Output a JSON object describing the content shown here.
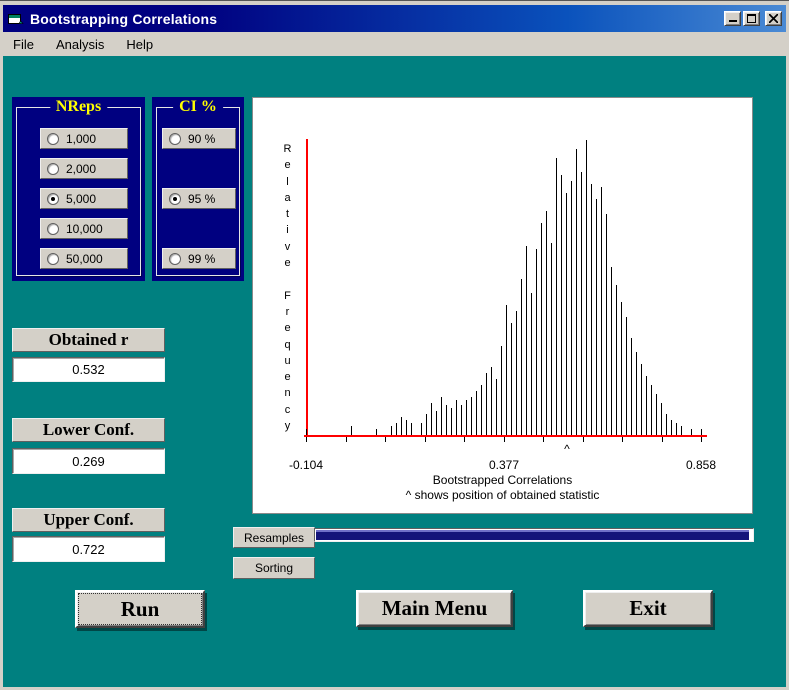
{
  "window": {
    "title": "Bootstrapping Correlations",
    "controls": {
      "minimize": "minimize",
      "maximize": "maximize",
      "close": "close"
    }
  },
  "menu": {
    "items": [
      "File",
      "Analysis",
      "Help"
    ]
  },
  "nreps": {
    "title": "NReps",
    "options": [
      {
        "label": "1,000",
        "selected": false
      },
      {
        "label": "2,000",
        "selected": false
      },
      {
        "label": "5,000",
        "selected": true
      },
      {
        "label": "10,000",
        "selected": false
      },
      {
        "label": "50,000",
        "selected": false
      }
    ]
  },
  "ci": {
    "title": "CI %",
    "options": [
      {
        "label": "90 %",
        "selected": false
      },
      {
        "label": "95 %",
        "selected": true
      },
      {
        "label": "99 %",
        "selected": false
      }
    ]
  },
  "results": [
    {
      "label": "Obtained r",
      "value": "0.532"
    },
    {
      "label": "Lower Conf.",
      "value": "0.269"
    },
    {
      "label": "Upper Conf.",
      "value": "0.722"
    }
  ],
  "progress": {
    "resamples_label": "Resamples",
    "sorting_label": "Sorting",
    "fill_pct": 99.3
  },
  "buttons": [
    {
      "label": "Run",
      "focused": true
    },
    {
      "label": "Main Menu",
      "focused": false
    },
    {
      "label": "Exit",
      "focused": false
    }
  ],
  "chart_data": {
    "type": "bar",
    "subtype": "histogram-spike-plot",
    "title": "",
    "xlabel": "Bootstrapped Correlations",
    "xlabel2": "^ shows position of obtained statistic",
    "ylabel": "Relative Frequency",
    "xlim": [
      -0.104,
      0.858
    ],
    "x_tick_labels": [
      "-0.104",
      "0.377",
      "0.858"
    ],
    "x_ticks": [
      -0.104,
      0.377,
      0.858
    ],
    "n_minor_ticks": 11,
    "grid": false,
    "axis_color": "#ff0000",
    "spike_color": "#000000",
    "marker": {
      "symbol": "^",
      "x": 0.532,
      "meaning": "position of obtained statistic"
    },
    "spikes_relative_heights": [
      0.02,
      0,
      0,
      0,
      0,
      0,
      0,
      0,
      0,
      0.03,
      0,
      0,
      0,
      0,
      0.02,
      0,
      0,
      0.03,
      0.04,
      0.06,
      0.05,
      0.04,
      0,
      0.04,
      0.07,
      0.11,
      0.08,
      0.13,
      0.1,
      0.09,
      0.12,
      0.1,
      0.12,
      0.13,
      0.15,
      0.17,
      0.21,
      0.23,
      0.19,
      0.3,
      0.44,
      0.38,
      0.42,
      0.53,
      0.64,
      0.48,
      0.63,
      0.72,
      0.76,
      0.65,
      0.94,
      0.88,
      0.82,
      0.86,
      0.97,
      0.89,
      1.0,
      0.85,
      0.8,
      0.84,
      0.75,
      0.57,
      0.51,
      0.45,
      0.4,
      0.33,
      0.28,
      0.24,
      0.2,
      0.17,
      0.14,
      0.11,
      0.07,
      0.05,
      0.04,
      0.03,
      0,
      0.02,
      0,
      0.02
    ]
  },
  "colors": {
    "client_teal": "#008080",
    "panel_navy": "#000080",
    "group_title_yellow": "#ffff00",
    "axis_red": "#ff0000",
    "control_gray": "#d4d0c8",
    "titlebar_gradient_start": "#000080",
    "titlebar_gradient_end": "#4a8ad4"
  }
}
